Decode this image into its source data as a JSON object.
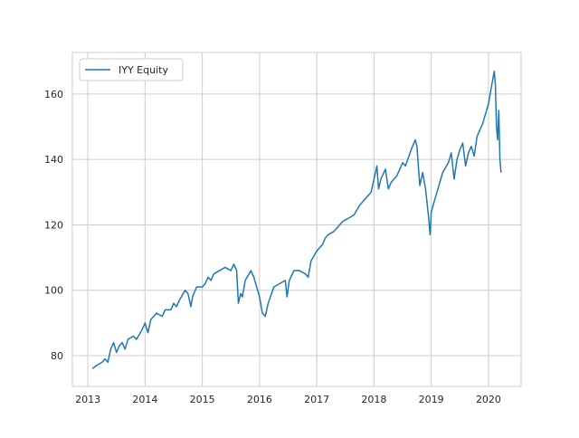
{
  "chart_data": {
    "type": "line",
    "x": [
      2013.08,
      2013.15,
      2013.25,
      2013.3,
      2013.35,
      2013.4,
      2013.45,
      2013.5,
      2013.55,
      2013.6,
      2013.65,
      2013.7,
      2013.8,
      2013.85,
      2013.95,
      2014.0,
      2014.05,
      2014.1,
      2014.2,
      2014.3,
      2014.35,
      2014.45,
      2014.5,
      2014.55,
      2014.6,
      2014.7,
      2014.75,
      2014.8,
      2014.83,
      2014.9,
      2015.0,
      2015.05,
      2015.1,
      2015.15,
      2015.2,
      2015.3,
      2015.4,
      2015.5,
      2015.55,
      2015.6,
      2015.63,
      2015.67,
      2015.7,
      2015.75,
      2015.85,
      2015.9,
      2016.0,
      2016.05,
      2016.1,
      2016.15,
      2016.25,
      2016.35,
      2016.45,
      2016.48,
      2016.52,
      2016.6,
      2016.7,
      2016.8,
      2016.85,
      2016.9,
      2017.0,
      2017.1,
      2017.15,
      2017.2,
      2017.3,
      2017.35,
      2017.45,
      2017.55,
      2017.65,
      2017.75,
      2017.85,
      2017.95,
      2018.0,
      2018.05,
      2018.08,
      2018.12,
      2018.2,
      2018.25,
      2018.3,
      2018.4,
      2018.5,
      2018.55,
      2018.65,
      2018.72,
      2018.75,
      2018.8,
      2018.85,
      2018.9,
      2018.95,
      2018.98,
      2019.0,
      2019.1,
      2019.2,
      2019.3,
      2019.35,
      2019.4,
      2019.45,
      2019.5,
      2019.55,
      2019.6,
      2019.65,
      2019.7,
      2019.75,
      2019.8,
      2019.9,
      2019.95,
      2020.0,
      2020.05,
      2020.1,
      2020.12,
      2020.14,
      2020.16,
      2020.18,
      2020.2,
      2020.22
    ],
    "series": [
      {
        "name": "IYY Equity",
        "color": "#1f77b4",
        "values": [
          76,
          77,
          78,
          79,
          78,
          82,
          84,
          81,
          83,
          84,
          82,
          85,
          86,
          85,
          88,
          90,
          87,
          91,
          93,
          92,
          94,
          94,
          96,
          95,
          97,
          100,
          99,
          95,
          98,
          101,
          101,
          102,
          104,
          103,
          105,
          106,
          107,
          106,
          108,
          106,
          96,
          99,
          98,
          103,
          106,
          104,
          98,
          93,
          92,
          96,
          101,
          102,
          103,
          98,
          103,
          106,
          106,
          105,
          104,
          109,
          112,
          114,
          116,
          117,
          118,
          119,
          121,
          122,
          123,
          126,
          128,
          130,
          134,
          138,
          131,
          134,
          137,
          131,
          133,
          135,
          139,
          138,
          143,
          146,
          144,
          132,
          136,
          131,
          123,
          117,
          124,
          130,
          136,
          139,
          142,
          134,
          140,
          143,
          145,
          138,
          142,
          144,
          141,
          147,
          151,
          154,
          157,
          162,
          167,
          163,
          150,
          146,
          155,
          140,
          136
        ]
      }
    ],
    "xlim": [
      2012.73,
      2020.57
    ],
    "ylim": [
      70.6,
      172.7
    ],
    "xticks": [
      2013,
      2014,
      2015,
      2016,
      2017,
      2018,
      2019,
      2020
    ],
    "yticks": [
      80,
      100,
      120,
      140,
      160
    ],
    "grid": true,
    "legend": "upper left"
  }
}
